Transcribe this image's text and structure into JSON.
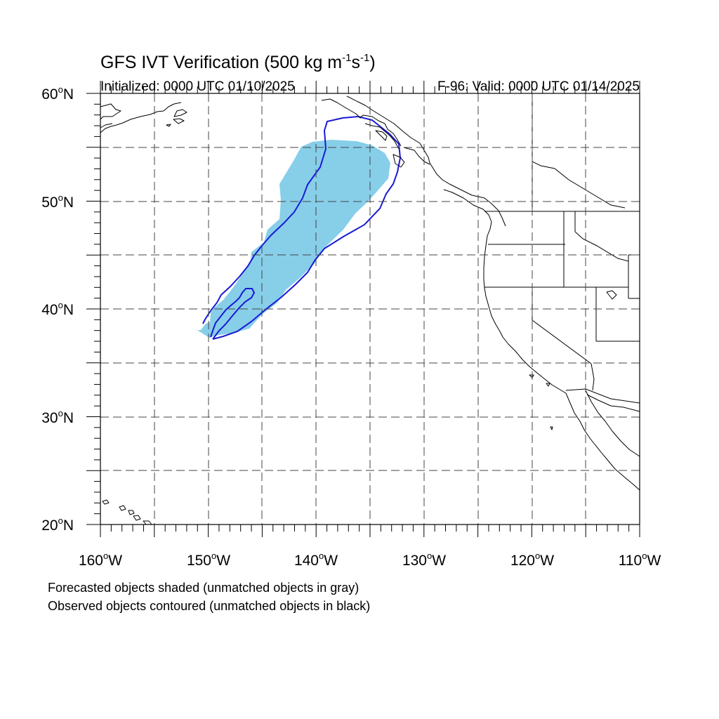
{
  "title": {
    "main": "GFS IVT Verification (500 kg m",
    "exp1": "-1",
    "mid": "s",
    "exp2": "-1",
    "end": ")"
  },
  "init_label": "Initialized: 0000 UTC 01/10/2025",
  "valid_label": "F-96: Valid: 0000 UTC 01/14/2025",
  "notes": {
    "forecast": "Forecasted objects shaded (unmatched objects in gray)",
    "observed": "Observed objects contoured (unmatched objects in black)"
  },
  "colors": {
    "forecast_fill": "#87cee9",
    "observed_contour": "#1a1ad6",
    "coast": "#000000",
    "grid": "#444444"
  },
  "map": {
    "projection": "cylindrical equidistant",
    "lon_range": [
      -160,
      -110
    ],
    "lat_range": [
      20,
      60
    ],
    "grid_lons": [
      -155,
      -150,
      -145,
      -140,
      -135,
      -130,
      -125,
      -120,
      -115
    ],
    "grid_lats": [
      25,
      30,
      35,
      40,
      45,
      50,
      55
    ],
    "lat_labels": [
      {
        "deg": "60",
        "hemi": "N"
      },
      {
        "deg": "50",
        "hemi": "N"
      },
      {
        "deg": "40",
        "hemi": "N"
      },
      {
        "deg": "30",
        "hemi": "N"
      },
      {
        "deg": "20",
        "hemi": "N"
      }
    ],
    "lon_labels": [
      {
        "deg": "160",
        "hemi": "W"
      },
      {
        "deg": "150",
        "hemi": "W"
      },
      {
        "deg": "140",
        "hemi": "W"
      },
      {
        "deg": "130",
        "hemi": "W"
      },
      {
        "deg": "120",
        "hemi": "W"
      },
      {
        "deg": "110",
        "hemi": "W"
      }
    ]
  }
}
